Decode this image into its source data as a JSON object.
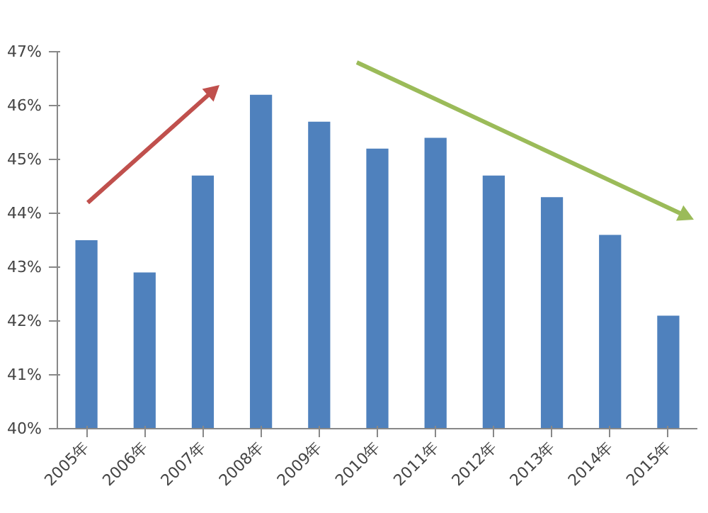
{
  "chart_data": {
    "type": "bar",
    "categories": [
      "2005年",
      "2006年",
      "2007年",
      "2008年",
      "2009年",
      "2010年",
      "2011年",
      "2012年",
      "2013年",
      "2014年",
      "2015年"
    ],
    "values": [
      43.5,
      42.9,
      44.7,
      46.2,
      45.7,
      45.2,
      45.4,
      44.7,
      44.3,
      43.6,
      42.1
    ],
    "color": "#4f81bd",
    "ylim": [
      40,
      47
    ],
    "yticks": [
      {
        "value": 40,
        "label": "40%"
      },
      {
        "value": 41,
        "label": "41%"
      },
      {
        "value": 42,
        "label": "42%"
      },
      {
        "value": 43,
        "label": "43%"
      },
      {
        "value": 44,
        "label": "44%"
      },
      {
        "value": 45,
        "label": "45%"
      },
      {
        "value": 46,
        "label": "46%"
      },
      {
        "value": 47,
        "label": "47%"
      }
    ],
    "grid": false
  }
}
